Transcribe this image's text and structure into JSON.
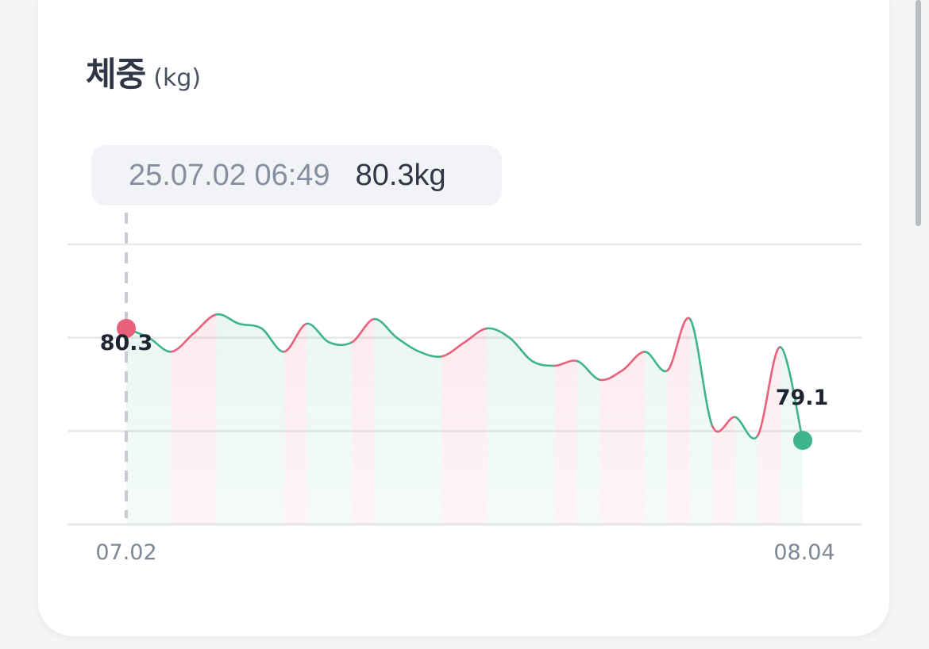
{
  "card": {
    "title": "체중",
    "unit": "(kg)"
  },
  "tooltip": {
    "time": "25.07.02 06:49",
    "value": "80.3kg"
  },
  "colors": {
    "up": "#e8607a",
    "down": "#3fb48c",
    "grid": "#e6e8eb",
    "cursor": "#c8ccd2"
  },
  "chart_data": {
    "type": "area",
    "x_tick_labels": [
      "07.02",
      "08.04"
    ],
    "ylim": [
      78.2,
      81.2
    ],
    "gridlines": [
      78.2,
      79.2,
      80.2,
      81.2
    ],
    "start_label": "80.3",
    "end_label": "79.1",
    "series": [
      {
        "values": [
          80.3,
          80.2,
          80.05,
          80.25,
          80.45,
          80.35,
          80.3,
          80.05,
          80.35,
          80.15,
          80.15,
          80.4,
          80.2,
          80.05,
          80.0,
          80.15,
          80.3,
          80.2,
          79.95,
          79.9,
          79.95,
          79.75,
          79.85,
          80.05,
          79.85,
          80.4,
          79.25,
          79.35,
          79.15,
          80.1,
          79.1
        ]
      }
    ]
  }
}
